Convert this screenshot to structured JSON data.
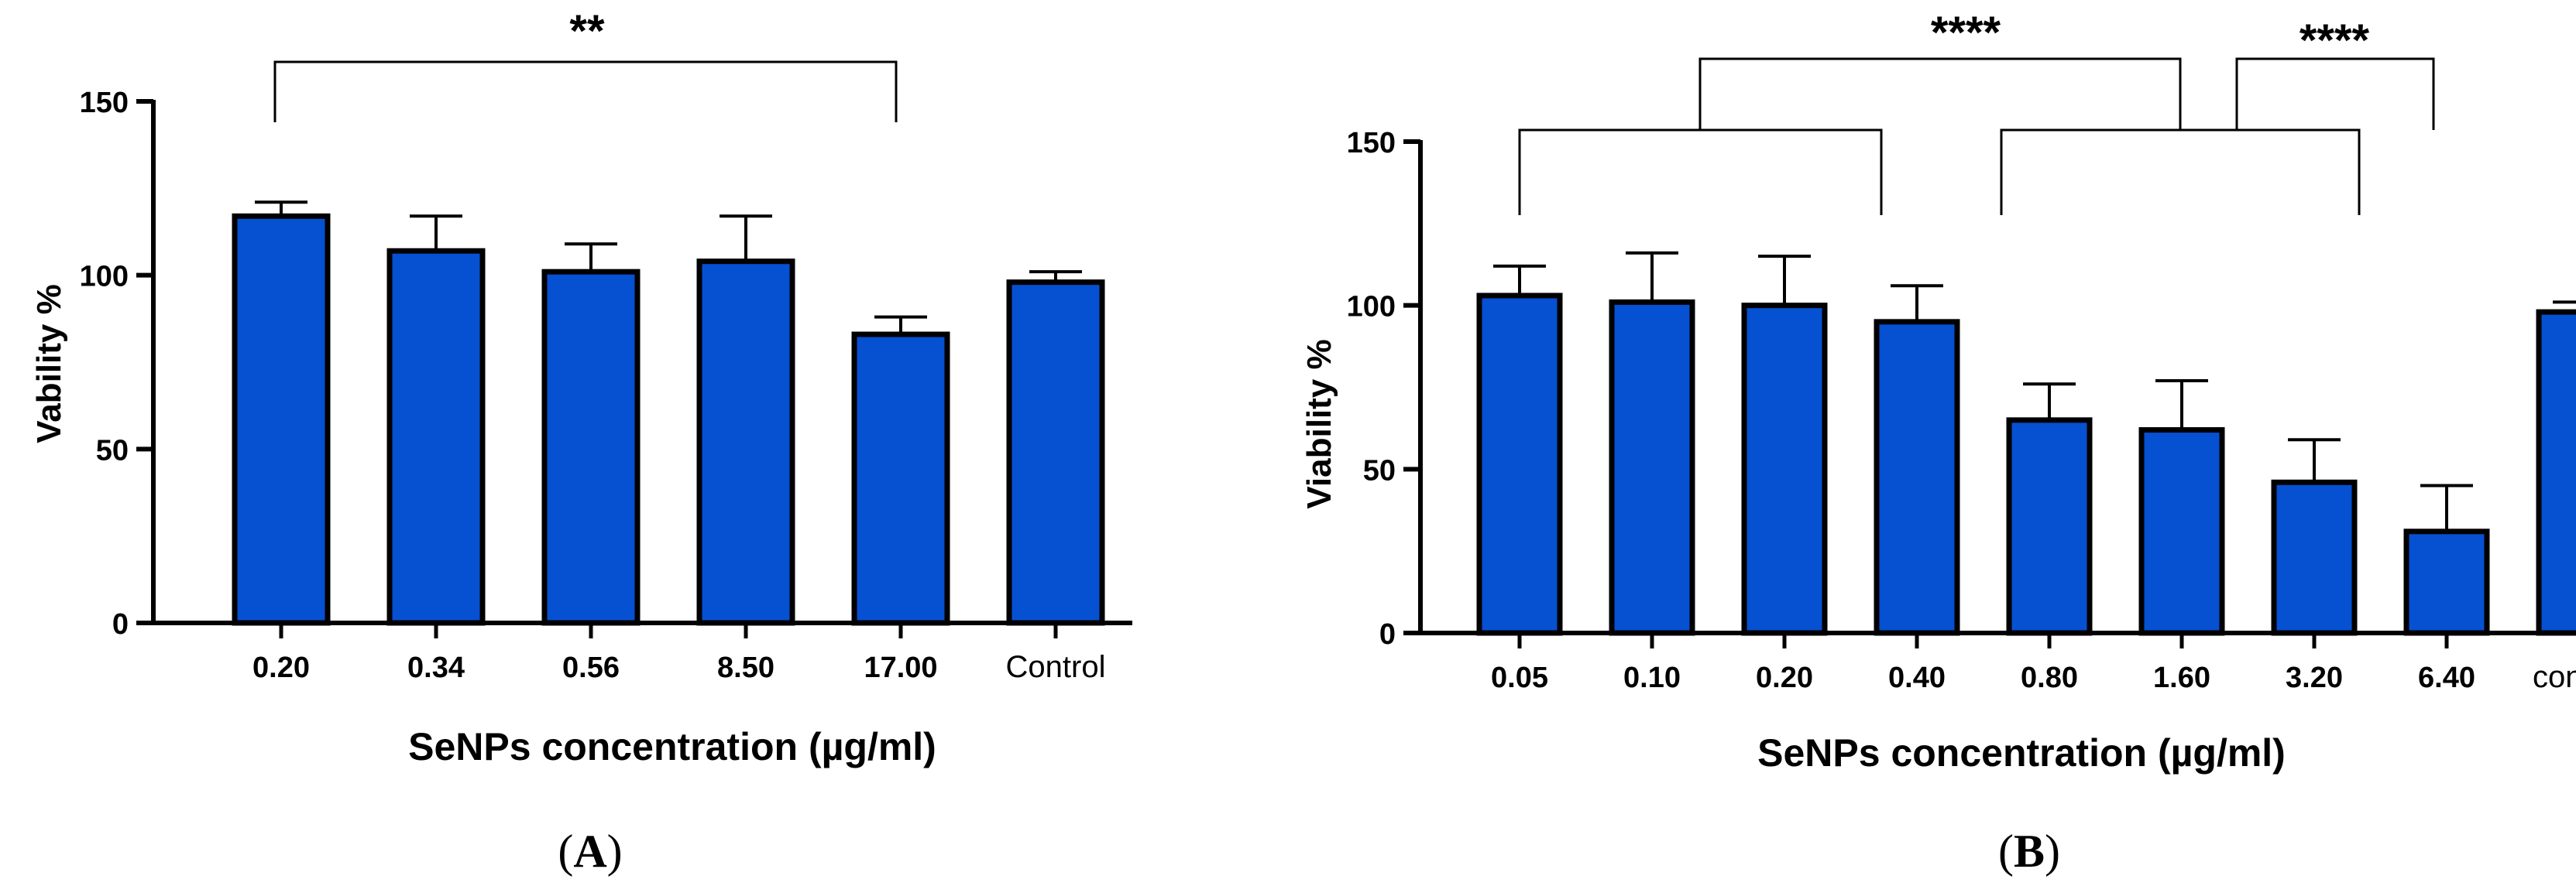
{
  "chart_data": [
    {
      "panel_label": "A",
      "type": "bar",
      "ylabel": "Vability %",
      "xlabel": "SeNPs concentration (µg/ml)",
      "categories": [
        "0.20",
        "0.34",
        "0.56",
        "8.50",
        "17.00",
        "Control"
      ],
      "values": [
        117,
        107,
        101,
        104,
        83,
        98
      ],
      "errors": [
        4,
        10,
        8,
        13,
        5,
        3
      ],
      "ylim": [
        0,
        150
      ],
      "yticks": [
        "0",
        "50",
        "100",
        "150"
      ],
      "bar_color": "#0650D2",
      "significance": [
        {
          "from": "0.20",
          "to": "17.00",
          "label": "**"
        }
      ]
    },
    {
      "panel_label": "B",
      "type": "bar",
      "ylabel": "Viability %",
      "xlabel": "SeNPs concentration (µg/ml)",
      "categories": [
        "0.05",
        "0.10",
        "0.20",
        "0.40",
        "0.80",
        "1.60",
        "3.20",
        "6.40",
        "control"
      ],
      "values": [
        103,
        101,
        100,
        95,
        65,
        62,
        46,
        31,
        98
      ],
      "errors": [
        9,
        15,
        15,
        11,
        11,
        15,
        13,
        14,
        3
      ],
      "ylim": [
        0,
        150
      ],
      "yticks": [
        "0",
        "50",
        "100",
        "150"
      ],
      "bar_color": "#0650D2",
      "significance": [
        {
          "groups": [
            "0.05-0.40",
            "0.80-6.40"
          ],
          "label": "****"
        },
        {
          "groups": [
            "0.80-6.40",
            "control"
          ],
          "label": "****"
        }
      ]
    }
  ]
}
